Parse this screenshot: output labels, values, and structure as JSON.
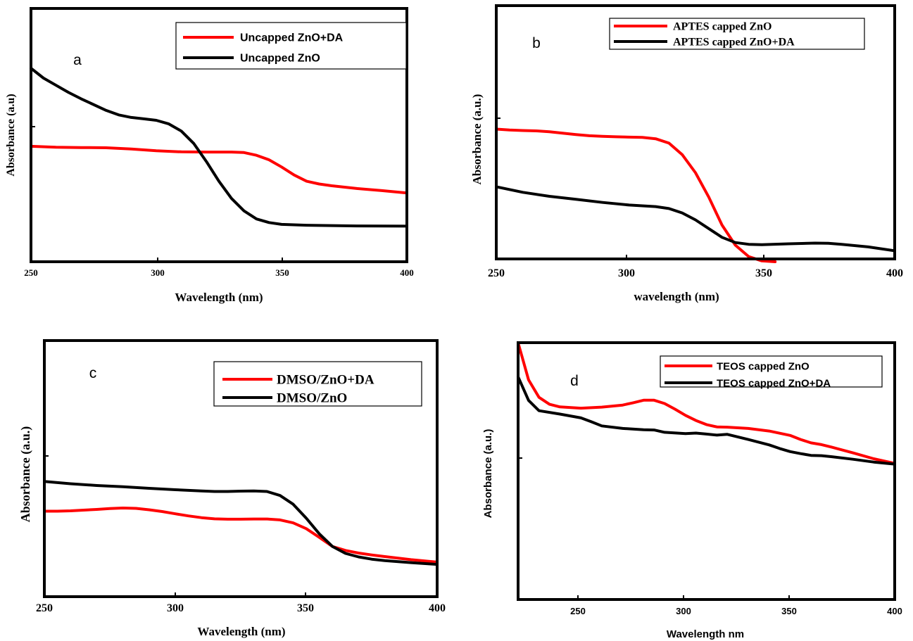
{
  "chart_data": [
    {
      "type": "line",
      "panel_label": "a",
      "xlabel": "Wavelength (nm)",
      "ylabel": "Absorbance (a.u)",
      "xlim": [
        250,
        400
      ],
      "ylim": [
        0,
        1
      ],
      "xticks": [
        "250",
        "300",
        "350",
        "400"
      ],
      "legend_position": "top-right",
      "series": [
        {
          "name": "Uncapped ZnO+DA",
          "color": "#ff0000",
          "x": [
            250,
            260,
            270,
            280,
            290,
            300,
            310,
            320,
            330,
            335,
            340,
            345,
            350,
            355,
            360,
            365,
            370,
            380,
            390,
            400
          ],
          "y": [
            0.565,
            0.56,
            0.558,
            0.557,
            0.55,
            0.54,
            0.534,
            0.533,
            0.533,
            0.53,
            0.515,
            0.49,
            0.45,
            0.405,
            0.37,
            0.355,
            0.345,
            0.33,
            0.318,
            0.305
          ]
        },
        {
          "name": "Uncapped ZnO",
          "color": "#000000",
          "x": [
            250,
            255,
            260,
            265,
            270,
            280,
            285,
            290,
            295,
            300,
            305,
            310,
            315,
            320,
            325,
            330,
            335,
            340,
            345,
            350,
            360,
            380,
            400
          ],
          "y": [
            1.0,
            0.945,
            0.905,
            0.865,
            0.83,
            0.765,
            0.74,
            0.726,
            0.718,
            0.71,
            0.69,
            0.65,
            0.58,
            0.48,
            0.37,
            0.275,
            0.205,
            0.16,
            0.14,
            0.13,
            0.125,
            0.121,
            0.12
          ]
        }
      ]
    },
    {
      "type": "line",
      "panel_label": "b",
      "xlabel": "wavelength (nm)",
      "ylabel": "Absorbance (a.u.)",
      "xlim": [
        250,
        400
      ],
      "ylim": [
        0,
        1
      ],
      "xticks": [
        "250",
        "300",
        "350",
        "400"
      ],
      "legend_position": "top-right",
      "series": [
        {
          "name": "APTES capped ZnO",
          "color": "#ff0000",
          "x": [
            250,
            255,
            260,
            265,
            270,
            275,
            280,
            285,
            290,
            295,
            300,
            305,
            310,
            315,
            320,
            325,
            330,
            335,
            340,
            345,
            350,
            355
          ],
          "y": [
            0.76,
            0.755,
            0.752,
            0.75,
            0.745,
            0.737,
            0.729,
            0.722,
            0.719,
            0.716,
            0.714,
            0.713,
            0.705,
            0.68,
            0.614,
            0.51,
            0.37,
            0.21,
            0.095,
            0.03,
            0.005,
            0.0
          ]
        },
        {
          "name": "APTES capped ZnO+DA",
          "color": "#000000",
          "x": [
            250,
            260,
            270,
            280,
            290,
            300,
            310,
            315,
            320,
            325,
            330,
            335,
            340,
            345,
            350,
            360,
            370,
            375,
            380,
            390,
            400
          ],
          "y": [
            0.43,
            0.398,
            0.375,
            0.358,
            0.34,
            0.325,
            0.316,
            0.305,
            0.28,
            0.24,
            0.19,
            0.14,
            0.11,
            0.1,
            0.098,
            0.103,
            0.107,
            0.106,
            0.1,
            0.085,
            0.063
          ]
        }
      ]
    },
    {
      "type": "line",
      "panel_label": "c",
      "xlabel": "Wavelength (nm)",
      "ylabel": "Absorbance (a.u.)",
      "xlim": [
        250,
        400
      ],
      "ylim": [
        0,
        1
      ],
      "xticks": [
        "250",
        "300",
        "350",
        "400"
      ],
      "legend_position": "top-right",
      "series": [
        {
          "name": "DMSO/ZnO+DA",
          "color": "#ff0000",
          "x": [
            250,
            255,
            260,
            265,
            270,
            275,
            280,
            285,
            290,
            295,
            300,
            305,
            310,
            315,
            320,
            325,
            330,
            335,
            340,
            345,
            350,
            355,
            360,
            365,
            370,
            375,
            380,
            390,
            400
          ],
          "y": [
            0.49,
            0.49,
            0.492,
            0.496,
            0.5,
            0.505,
            0.508,
            0.506,
            0.498,
            0.488,
            0.475,
            0.463,
            0.453,
            0.446,
            0.444,
            0.444,
            0.445,
            0.445,
            0.44,
            0.423,
            0.39,
            0.34,
            0.288,
            0.265,
            0.25,
            0.239,
            0.23,
            0.212,
            0.198
          ]
        },
        {
          "name": "DMSO/ZnO",
          "color": "#000000",
          "x": [
            250,
            260,
            270,
            280,
            290,
            300,
            310,
            315,
            320,
            325,
            330,
            335,
            340,
            345,
            350,
            355,
            360,
            365,
            370,
            375,
            380,
            390,
            400
          ],
          "y": [
            0.66,
            0.647,
            0.637,
            0.63,
            0.621,
            0.613,
            0.606,
            0.603,
            0.603,
            0.605,
            0.606,
            0.603,
            0.58,
            0.53,
            0.45,
            0.36,
            0.288,
            0.248,
            0.228,
            0.215,
            0.207,
            0.195,
            0.185
          ]
        }
      ]
    },
    {
      "type": "line",
      "panel_label": "d",
      "xlabel": "Wavelength nm",
      "ylabel": "Absorbance (a.u.)",
      "xlim": [
        220,
        400
      ],
      "ylim": [
        0,
        1
      ],
      "xticks": [
        "250",
        "300",
        "350",
        "400"
      ],
      "legend_position": "top-right",
      "series": [
        {
          "name": "TEOS capped ZnO",
          "color": "#ff0000",
          "x": [
            220,
            225,
            230,
            235,
            240,
            250,
            260,
            270,
            275,
            280,
            285,
            290,
            295,
            300,
            305,
            310,
            315,
            320,
            330,
            340,
            350,
            355,
            360,
            365,
            370,
            380,
            390,
            400
          ],
          "y": [
            1.0,
            0.855,
            0.787,
            0.76,
            0.75,
            0.745,
            0.749,
            0.757,
            0.766,
            0.776,
            0.776,
            0.763,
            0.741,
            0.717,
            0.697,
            0.681,
            0.672,
            0.671,
            0.666,
            0.656,
            0.639,
            0.623,
            0.61,
            0.603,
            0.593,
            0.571,
            0.548,
            0.53
          ]
        },
        {
          "name": "TEOS capped ZnO+DA",
          "color": "#000000",
          "x": [
            220,
            225,
            230,
            240,
            250,
            255,
            260,
            270,
            280,
            285,
            290,
            300,
            305,
            310,
            315,
            320,
            330,
            340,
            345,
            350,
            355,
            360,
            365,
            370,
            380,
            390,
            400
          ],
          "y": [
            0.867,
            0.775,
            0.735,
            0.722,
            0.707,
            0.692,
            0.676,
            0.666,
            0.661,
            0.66,
            0.651,
            0.646,
            0.648,
            0.644,
            0.64,
            0.643,
            0.623,
            0.602,
            0.588,
            0.576,
            0.568,
            0.561,
            0.56,
            0.556,
            0.546,
            0.535,
            0.527
          ]
        }
      ]
    }
  ]
}
